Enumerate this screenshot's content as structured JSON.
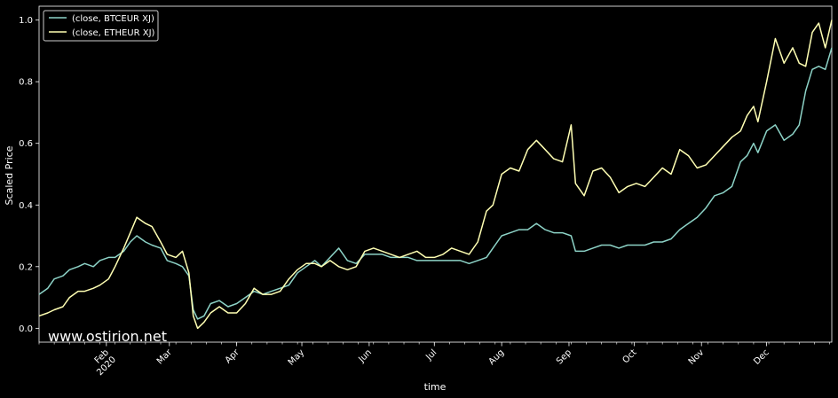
{
  "chart_data": {
    "type": "line",
    "title": "",
    "xlabel": "time",
    "ylabel": "Scaled Price",
    "ylim": [
      -0.045,
      1.045
    ],
    "xlim": [
      "2020-01-01",
      "2020-12-31"
    ],
    "grid": false,
    "legend_position": "top-left",
    "y_ticks": [
      0.0,
      0.2,
      0.4,
      0.6,
      0.8,
      1.0
    ],
    "y_tick_labels": [
      "0.0",
      "0.2",
      "0.4",
      "0.6",
      "0.8",
      "1.0"
    ],
    "x_ticks": [
      {
        "date": "2020-02-01",
        "label": "Feb",
        "sublabel": "2020"
      },
      {
        "date": "2020-03-01",
        "label": "Mar",
        "sublabel": ""
      },
      {
        "date": "2020-04-01",
        "label": "Apr",
        "sublabel": ""
      },
      {
        "date": "2020-05-01",
        "label": "May",
        "sublabel": ""
      },
      {
        "date": "2020-06-01",
        "label": "Jun",
        "sublabel": ""
      },
      {
        "date": "2020-07-01",
        "label": "Jul",
        "sublabel": ""
      },
      {
        "date": "2020-08-01",
        "label": "Aug",
        "sublabel": ""
      },
      {
        "date": "2020-09-01",
        "label": "Sep",
        "sublabel": ""
      },
      {
        "date": "2020-10-01",
        "label": "Oct",
        "sublabel": ""
      },
      {
        "date": "2020-11-01",
        "label": "Nov",
        "sublabel": ""
      },
      {
        "date": "2020-12-01",
        "label": "Dec",
        "sublabel": ""
      }
    ],
    "series": [
      {
        "name": "(close, BTCEUR XJ)",
        "color": "#8dd3c7",
        "points": [
          [
            "2020-01-01",
            0.11
          ],
          [
            "2020-01-05",
            0.13
          ],
          [
            "2020-01-08",
            0.16
          ],
          [
            "2020-01-12",
            0.17
          ],
          [
            "2020-01-15",
            0.19
          ],
          [
            "2020-01-19",
            0.2
          ],
          [
            "2020-01-22",
            0.21
          ],
          [
            "2020-01-26",
            0.2
          ],
          [
            "2020-01-29",
            0.22
          ],
          [
            "2020-02-02",
            0.23
          ],
          [
            "2020-02-05",
            0.23
          ],
          [
            "2020-02-09",
            0.25
          ],
          [
            "2020-02-12",
            0.28
          ],
          [
            "2020-02-15",
            0.3
          ],
          [
            "2020-02-19",
            0.28
          ],
          [
            "2020-02-22",
            0.27
          ],
          [
            "2020-02-26",
            0.26
          ],
          [
            "2020-02-29",
            0.22
          ],
          [
            "2020-03-04",
            0.21
          ],
          [
            "2020-03-07",
            0.2
          ],
          [
            "2020-03-10",
            0.17
          ],
          [
            "2020-03-12",
            0.06
          ],
          [
            "2020-03-14",
            0.03
          ],
          [
            "2020-03-17",
            0.04
          ],
          [
            "2020-03-20",
            0.08
          ],
          [
            "2020-03-24",
            0.09
          ],
          [
            "2020-03-28",
            0.07
          ],
          [
            "2020-04-01",
            0.08
          ],
          [
            "2020-04-05",
            0.1
          ],
          [
            "2020-04-09",
            0.12
          ],
          [
            "2020-04-13",
            0.11
          ],
          [
            "2020-04-17",
            0.12
          ],
          [
            "2020-04-21",
            0.13
          ],
          [
            "2020-04-25",
            0.14
          ],
          [
            "2020-04-29",
            0.18
          ],
          [
            "2020-05-03",
            0.2
          ],
          [
            "2020-05-07",
            0.22
          ],
          [
            "2020-05-10",
            0.2
          ],
          [
            "2020-05-14",
            0.23
          ],
          [
            "2020-05-18",
            0.26
          ],
          [
            "2020-05-22",
            0.22
          ],
          [
            "2020-05-26",
            0.21
          ],
          [
            "2020-05-30",
            0.24
          ],
          [
            "2020-06-03",
            0.24
          ],
          [
            "2020-06-07",
            0.24
          ],
          [
            "2020-06-11",
            0.23
          ],
          [
            "2020-06-15",
            0.23
          ],
          [
            "2020-06-19",
            0.23
          ],
          [
            "2020-06-23",
            0.22
          ],
          [
            "2020-06-27",
            0.22
          ],
          [
            "2020-07-01",
            0.22
          ],
          [
            "2020-07-05",
            0.22
          ],
          [
            "2020-07-09",
            0.22
          ],
          [
            "2020-07-13",
            0.22
          ],
          [
            "2020-07-17",
            0.21
          ],
          [
            "2020-07-21",
            0.22
          ],
          [
            "2020-07-25",
            0.23
          ],
          [
            "2020-07-28",
            0.26
          ],
          [
            "2020-08-01",
            0.3
          ],
          [
            "2020-08-05",
            0.31
          ],
          [
            "2020-08-09",
            0.32
          ],
          [
            "2020-08-13",
            0.32
          ],
          [
            "2020-08-17",
            0.34
          ],
          [
            "2020-08-21",
            0.32
          ],
          [
            "2020-08-25",
            0.31
          ],
          [
            "2020-08-29",
            0.31
          ],
          [
            "2020-09-02",
            0.3
          ],
          [
            "2020-09-04",
            0.25
          ],
          [
            "2020-09-08",
            0.25
          ],
          [
            "2020-09-12",
            0.26
          ],
          [
            "2020-09-16",
            0.27
          ],
          [
            "2020-09-20",
            0.27
          ],
          [
            "2020-09-24",
            0.26
          ],
          [
            "2020-09-28",
            0.27
          ],
          [
            "2020-10-02",
            0.27
          ],
          [
            "2020-10-06",
            0.27
          ],
          [
            "2020-10-10",
            0.28
          ],
          [
            "2020-10-14",
            0.28
          ],
          [
            "2020-10-18",
            0.29
          ],
          [
            "2020-10-22",
            0.32
          ],
          [
            "2020-10-26",
            0.34
          ],
          [
            "2020-10-30",
            0.36
          ],
          [
            "2020-11-03",
            0.39
          ],
          [
            "2020-11-07",
            0.43
          ],
          [
            "2020-11-11",
            0.44
          ],
          [
            "2020-11-15",
            0.46
          ],
          [
            "2020-11-19",
            0.54
          ],
          [
            "2020-11-22",
            0.56
          ],
          [
            "2020-11-25",
            0.6
          ],
          [
            "2020-11-27",
            0.57
          ],
          [
            "2020-12-01",
            0.64
          ],
          [
            "2020-12-05",
            0.66
          ],
          [
            "2020-12-09",
            0.61
          ],
          [
            "2020-12-13",
            0.63
          ],
          [
            "2020-12-16",
            0.66
          ],
          [
            "2020-12-19",
            0.77
          ],
          [
            "2020-12-22",
            0.84
          ],
          [
            "2020-12-25",
            0.85
          ],
          [
            "2020-12-28",
            0.84
          ],
          [
            "2020-12-31",
            0.91
          ]
        ]
      },
      {
        "name": "(close, ETHEUR XJ)",
        "color": "#ffffb3",
        "points": [
          [
            "2020-01-01",
            0.04
          ],
          [
            "2020-01-05",
            0.05
          ],
          [
            "2020-01-08",
            0.06
          ],
          [
            "2020-01-12",
            0.07
          ],
          [
            "2020-01-15",
            0.1
          ],
          [
            "2020-01-19",
            0.12
          ],
          [
            "2020-01-22",
            0.12
          ],
          [
            "2020-01-26",
            0.13
          ],
          [
            "2020-01-29",
            0.14
          ],
          [
            "2020-02-02",
            0.16
          ],
          [
            "2020-02-05",
            0.2
          ],
          [
            "2020-02-09",
            0.26
          ],
          [
            "2020-02-12",
            0.31
          ],
          [
            "2020-02-15",
            0.36
          ],
          [
            "2020-02-19",
            0.34
          ],
          [
            "2020-02-22",
            0.33
          ],
          [
            "2020-02-26",
            0.28
          ],
          [
            "2020-02-29",
            0.24
          ],
          [
            "2020-03-04",
            0.23
          ],
          [
            "2020-03-07",
            0.25
          ],
          [
            "2020-03-10",
            0.18
          ],
          [
            "2020-03-12",
            0.04
          ],
          [
            "2020-03-14",
            0.0
          ],
          [
            "2020-03-17",
            0.02
          ],
          [
            "2020-03-20",
            0.05
          ],
          [
            "2020-03-24",
            0.07
          ],
          [
            "2020-03-28",
            0.05
          ],
          [
            "2020-04-01",
            0.05
          ],
          [
            "2020-04-05",
            0.08
          ],
          [
            "2020-04-09",
            0.13
          ],
          [
            "2020-04-13",
            0.11
          ],
          [
            "2020-04-17",
            0.11
          ],
          [
            "2020-04-21",
            0.12
          ],
          [
            "2020-04-25",
            0.16
          ],
          [
            "2020-04-29",
            0.19
          ],
          [
            "2020-05-03",
            0.21
          ],
          [
            "2020-05-07",
            0.21
          ],
          [
            "2020-05-10",
            0.2
          ],
          [
            "2020-05-14",
            0.22
          ],
          [
            "2020-05-18",
            0.2
          ],
          [
            "2020-05-22",
            0.19
          ],
          [
            "2020-05-26",
            0.2
          ],
          [
            "2020-05-30",
            0.25
          ],
          [
            "2020-06-03",
            0.26
          ],
          [
            "2020-06-07",
            0.25
          ],
          [
            "2020-06-11",
            0.24
          ],
          [
            "2020-06-15",
            0.23
          ],
          [
            "2020-06-19",
            0.24
          ],
          [
            "2020-06-23",
            0.25
          ],
          [
            "2020-06-27",
            0.23
          ],
          [
            "2020-07-01",
            0.23
          ],
          [
            "2020-07-05",
            0.24
          ],
          [
            "2020-07-09",
            0.26
          ],
          [
            "2020-07-13",
            0.25
          ],
          [
            "2020-07-17",
            0.24
          ],
          [
            "2020-07-21",
            0.28
          ],
          [
            "2020-07-25",
            0.38
          ],
          [
            "2020-07-28",
            0.4
          ],
          [
            "2020-08-01",
            0.5
          ],
          [
            "2020-08-05",
            0.52
          ],
          [
            "2020-08-09",
            0.51
          ],
          [
            "2020-08-13",
            0.58
          ],
          [
            "2020-08-17",
            0.61
          ],
          [
            "2020-08-21",
            0.58
          ],
          [
            "2020-08-25",
            0.55
          ],
          [
            "2020-08-29",
            0.54
          ],
          [
            "2020-09-02",
            0.66
          ],
          [
            "2020-09-04",
            0.47
          ],
          [
            "2020-09-08",
            0.43
          ],
          [
            "2020-09-12",
            0.51
          ],
          [
            "2020-09-16",
            0.52
          ],
          [
            "2020-09-20",
            0.49
          ],
          [
            "2020-09-24",
            0.44
          ],
          [
            "2020-09-28",
            0.46
          ],
          [
            "2020-10-02",
            0.47
          ],
          [
            "2020-10-06",
            0.46
          ],
          [
            "2020-10-10",
            0.49
          ],
          [
            "2020-10-14",
            0.52
          ],
          [
            "2020-10-18",
            0.5
          ],
          [
            "2020-10-22",
            0.58
          ],
          [
            "2020-10-26",
            0.56
          ],
          [
            "2020-10-30",
            0.52
          ],
          [
            "2020-11-03",
            0.53
          ],
          [
            "2020-11-07",
            0.56
          ],
          [
            "2020-11-11",
            0.59
          ],
          [
            "2020-11-15",
            0.62
          ],
          [
            "2020-11-19",
            0.64
          ],
          [
            "2020-11-22",
            0.69
          ],
          [
            "2020-11-25",
            0.72
          ],
          [
            "2020-11-27",
            0.67
          ],
          [
            "2020-12-01",
            0.8
          ],
          [
            "2020-12-05",
            0.94
          ],
          [
            "2020-12-09",
            0.86
          ],
          [
            "2020-12-13",
            0.91
          ],
          [
            "2020-12-16",
            0.86
          ],
          [
            "2020-12-19",
            0.85
          ],
          [
            "2020-12-22",
            0.96
          ],
          [
            "2020-12-25",
            0.99
          ],
          [
            "2020-12-28",
            0.91
          ],
          [
            "2020-12-31",
            1.0
          ]
        ]
      }
    ]
  },
  "watermark": "www.ostirion.net"
}
